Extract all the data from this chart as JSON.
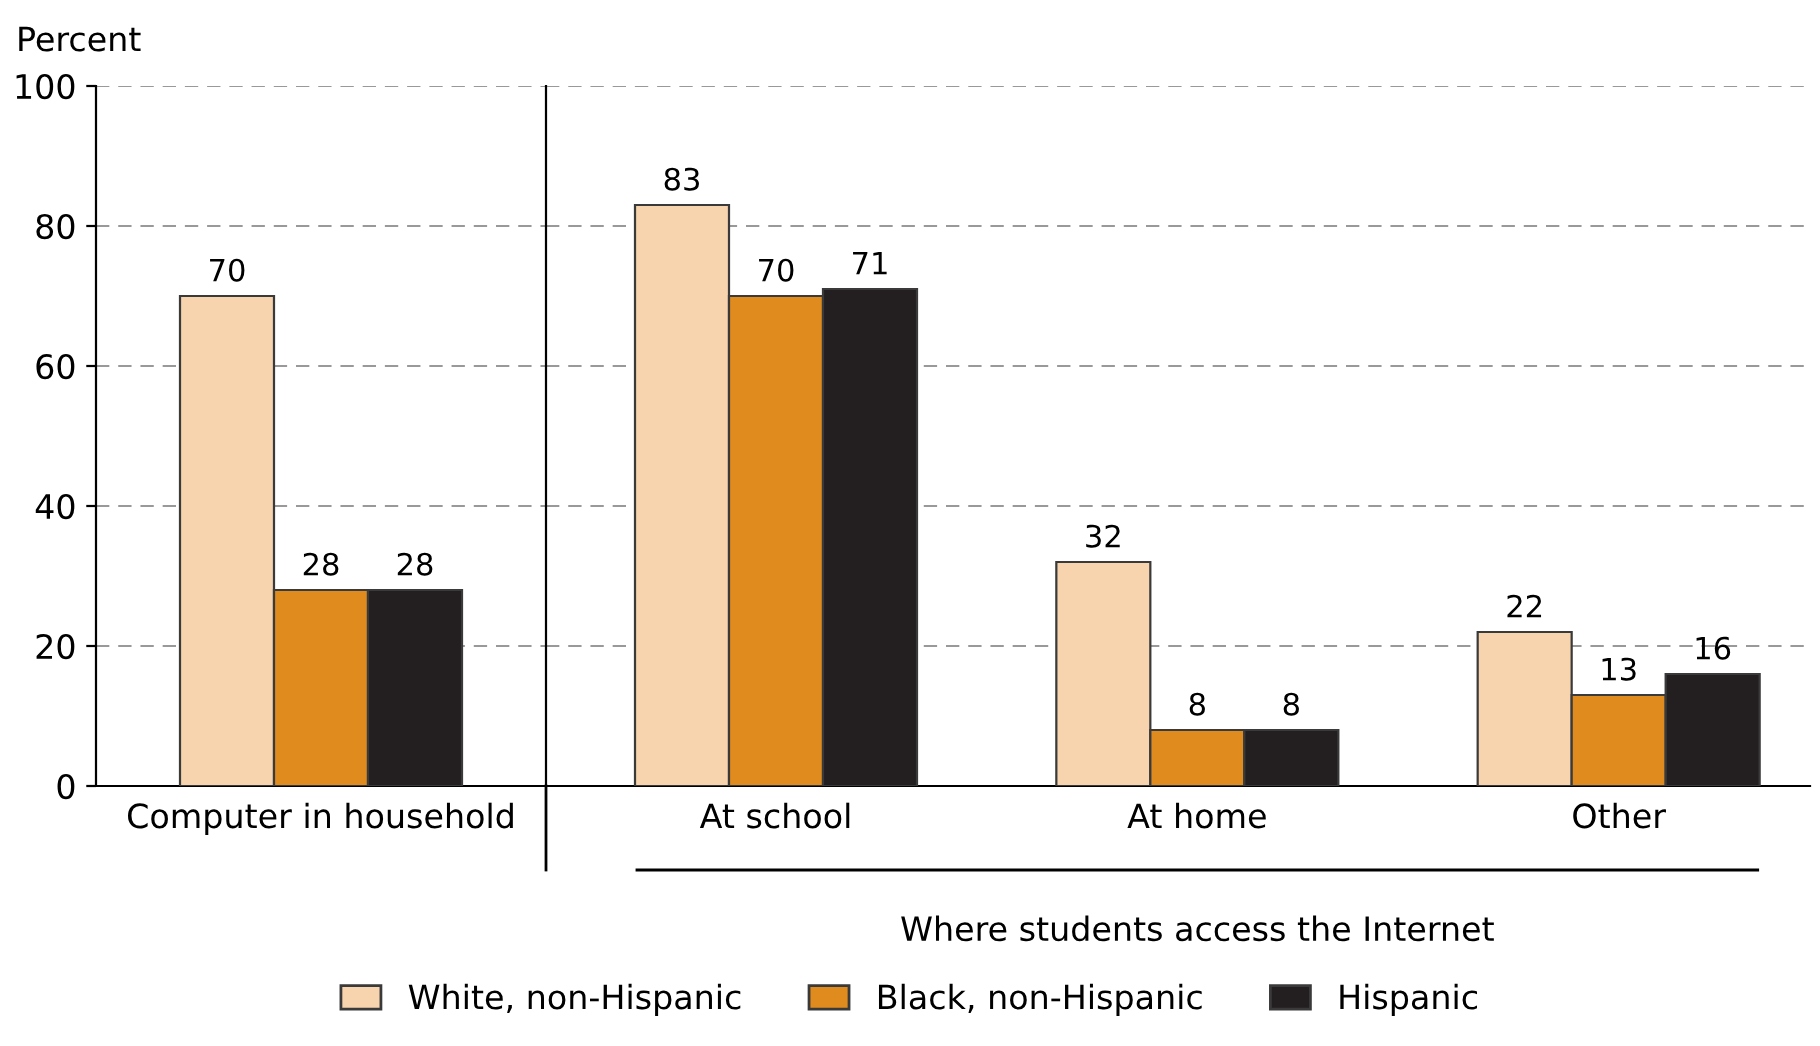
{
  "chart_data": [
    {
      "type": "bar",
      "ylabel": "Percent",
      "categories": [
        "Computer in household"
      ],
      "series": [
        {
          "name": "White, non-Hispanic",
          "color": "#f7d4ae",
          "values": [
            70
          ]
        },
        {
          "name": "Black, non-Hispanic",
          "color": "#e08b1d",
          "values": [
            28
          ]
        },
        {
          "name": "Hispanic",
          "color": "#231f20",
          "values": [
            28
          ]
        }
      ],
      "ylim": [
        0,
        100
      ],
      "yticks": [
        0,
        20,
        40,
        60,
        80,
        100
      ],
      "grid": "y",
      "legend": "bottom",
      "data_labels": true
    },
    {
      "type": "bar",
      "categories": [
        "At school",
        "At home",
        "Other"
      ],
      "series": [
        {
          "color": "#f7d4ae",
          "values": [
            83,
            32,
            22
          ]
        },
        {
          "color": "#e08b1d",
          "values": [
            70,
            8,
            13
          ]
        },
        {
          "color": "#231f20",
          "values": [
            71,
            8,
            16
          ]
        }
      ],
      "ylim": [
        0,
        100
      ],
      "yticks": [
        0,
        20,
        40,
        60,
        80,
        100
      ],
      "grid": "y",
      "tick_labels": "x",
      "data_labels": true,
      "annotations": [
        "Where students access the Internet"
      ]
    }
  ]
}
